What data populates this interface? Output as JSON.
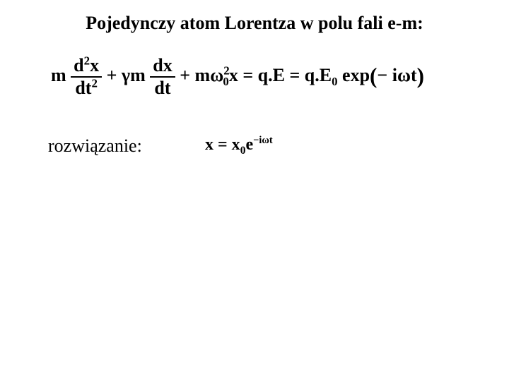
{
  "title": "Pojedynczy atom Lorentza w polu fali e-m:",
  "equation1": {
    "m1": "m",
    "frac1": {
      "num_pre": "d",
      "num_sup": "2",
      "num_post": "x",
      "den_pre": "dt",
      "den_sup": "2"
    },
    "plus1": "+",
    "gamma_m": "γm",
    "frac2": {
      "num": "dx",
      "den": "dt"
    },
    "plus2": "+",
    "m_omega_pre": "mω",
    "omega_sup": "2",
    "omega_sub": "0",
    "after_omega": "x = q.E = q.E",
    "E_sub": "0",
    "exp_word": " exp",
    "paren_open": "(",
    "exp_arg": "− iωt",
    "paren_close": ")"
  },
  "solution_label": "rozwiązanie:",
  "equation2": {
    "pre": "x = x",
    "sub0": "0",
    "e": "e",
    "sup": "−iωt"
  },
  "colors": {
    "background": "#ffffff",
    "text": "#000000"
  }
}
